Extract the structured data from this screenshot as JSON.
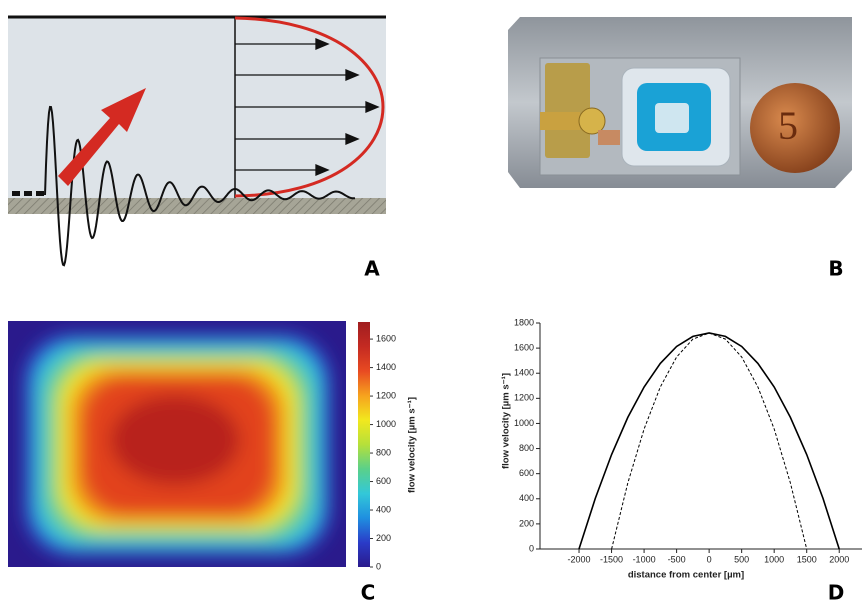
{
  "panel_labels": [
    "A",
    "B",
    "C",
    "D"
  ],
  "chart_data": [
    {
      "type": "heatmap",
      "colorbar_label": "flow velocity [µm s⁻¹]",
      "clim": [
        0,
        1720
      ],
      "cticks": [
        0,
        200,
        400,
        600,
        800,
        1000,
        1200,
        1400,
        1600
      ],
      "colormap": [
        "#2a1a8c",
        "#2a3cc8",
        "#1f8fe0",
        "#33c8d8",
        "#5ad08a",
        "#b6e03a",
        "#f2e81e",
        "#f6a21e",
        "#e84a22",
        "#c42a22",
        "#a01e20"
      ]
    },
    {
      "type": "line",
      "xlabel": "distance from center [µm]",
      "ylabel": "flow velocity [µm s⁻¹]",
      "x": [
        -2000,
        -1750,
        -1500,
        -1250,
        -1000,
        -750,
        -500,
        -250,
        0,
        250,
        500,
        750,
        1000,
        1250,
        1500,
        1750,
        2000
      ],
      "series": [
        {
          "color": "#000000",
          "line_style": "solid",
          "values": [
            0,
            403,
            753,
            1048,
            1290,
            1478,
            1613,
            1693,
            1720,
            1693,
            1613,
            1478,
            1290,
            1048,
            753,
            403,
            0
          ]
        },
        {
          "color": "#000000",
          "line_style": "dashed",
          "values": [
            null,
            null,
            0,
            526,
            956,
            1290,
            1529,
            1672,
            1720,
            1672,
            1529,
            1290,
            956,
            526,
            0,
            null,
            null
          ]
        }
      ],
      "xlim": [
        -2600,
        2350
      ],
      "ylim": [
        0,
        1800
      ],
      "xticks": [
        -2000,
        -1500,
        -1000,
        -500,
        0,
        500,
        1000,
        1500,
        2000
      ],
      "yticks": [
        0,
        200,
        400,
        600,
        800,
        1000,
        1200,
        1400,
        1600,
        1800
      ]
    }
  ]
}
